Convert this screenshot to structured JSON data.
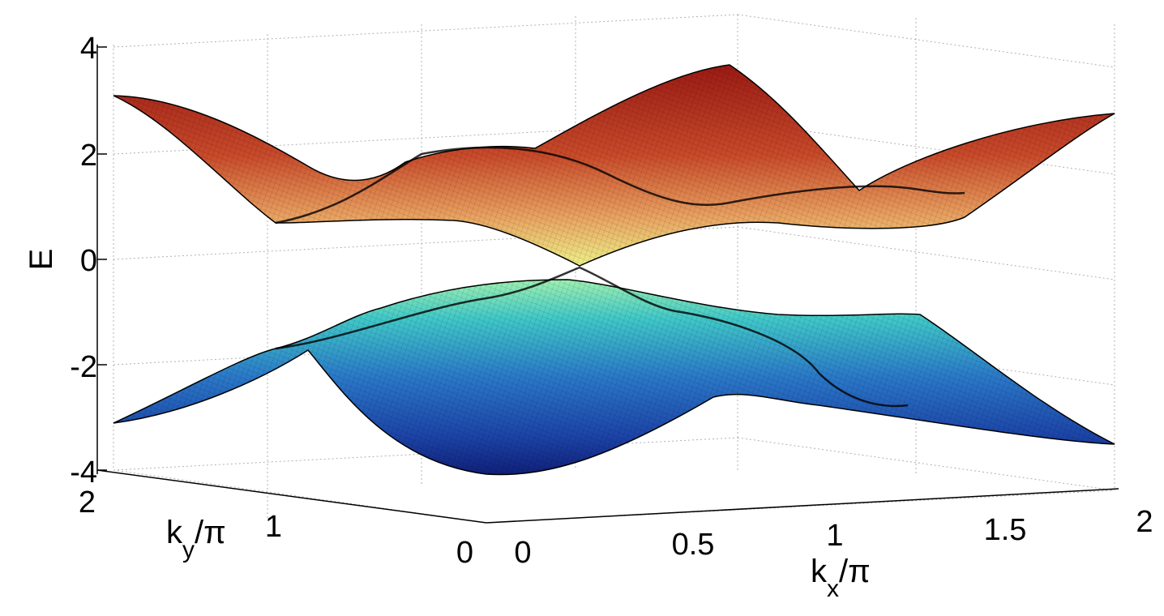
{
  "chart_data": {
    "type": "surface3d",
    "title": "",
    "xlabel": "k_x/π",
    "ylabel": "k_y/π",
    "zlabel": "E",
    "xlabel_main": "k",
    "xlabel_sub": "x",
    "xlabel_rest": "/π",
    "ylabel_main": "k",
    "ylabel_sub": "y",
    "ylabel_rest": "/π",
    "xlim": [
      0,
      2
    ],
    "ylim": [
      0,
      2
    ],
    "zlim": [
      -4,
      4
    ],
    "xticks": [
      "0",
      "0.5",
      "1",
      "1.5",
      "2"
    ],
    "yticks": [
      "0",
      "1",
      "2"
    ],
    "zticks": [
      "-4",
      "-2",
      "0",
      "2",
      "4"
    ],
    "grid": true,
    "colormap": "jet",
    "series": [
      {
        "band": "upper",
        "description_values": {
          "max": 3.5,
          "min": 0,
          "dirac_point": [
            0.5,
            1.0,
            0
          ]
        }
      },
      {
        "band": "lower",
        "description_values": {
          "max": 0,
          "min": -3.5,
          "dirac_point": [
            0.5,
            1.0,
            0
          ]
        }
      }
    ],
    "colors": {
      "red": "#b02020",
      "orange": "#e8904a",
      "yellow": "#e8f080",
      "cyan": "#40c8c0",
      "blue": "#2050b0",
      "darkblue": "#102070",
      "mesh": "#000000",
      "grid": "#b0b0b0"
    }
  }
}
